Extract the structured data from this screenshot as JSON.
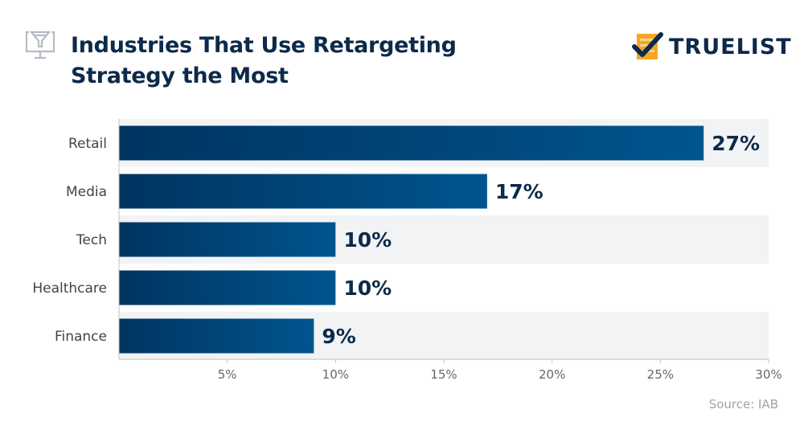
{
  "header": {
    "title_line1": "Industries That Use Retargeting",
    "title_line2": "Strategy the Most",
    "icon": "funnel-monitor-icon",
    "logo_text": "TRUELIST"
  },
  "source": "Source: IAB",
  "colors": {
    "bar": "#003763",
    "bar_gradient_end": "#00558f",
    "band": "#f2f3f5",
    "title": "#0c2a4a",
    "logo_orange": "#f5a623"
  },
  "chart_data": {
    "type": "bar",
    "orientation": "horizontal",
    "categories": [
      "Retail",
      "Media",
      "Tech",
      "Healthcare",
      "Finance"
    ],
    "values": [
      27,
      17,
      10,
      10,
      9
    ],
    "value_labels": [
      "27%",
      "17%",
      "10%",
      "10%",
      "9%"
    ],
    "xlim": [
      0,
      30
    ],
    "xticks": [
      5,
      10,
      15,
      20,
      25,
      30
    ],
    "xtick_labels": [
      "5%",
      "10%",
      "15%",
      "20%",
      "25%",
      "30%"
    ],
    "title": "Industries That Use Retargeting Strategy the Most",
    "grid": false
  }
}
